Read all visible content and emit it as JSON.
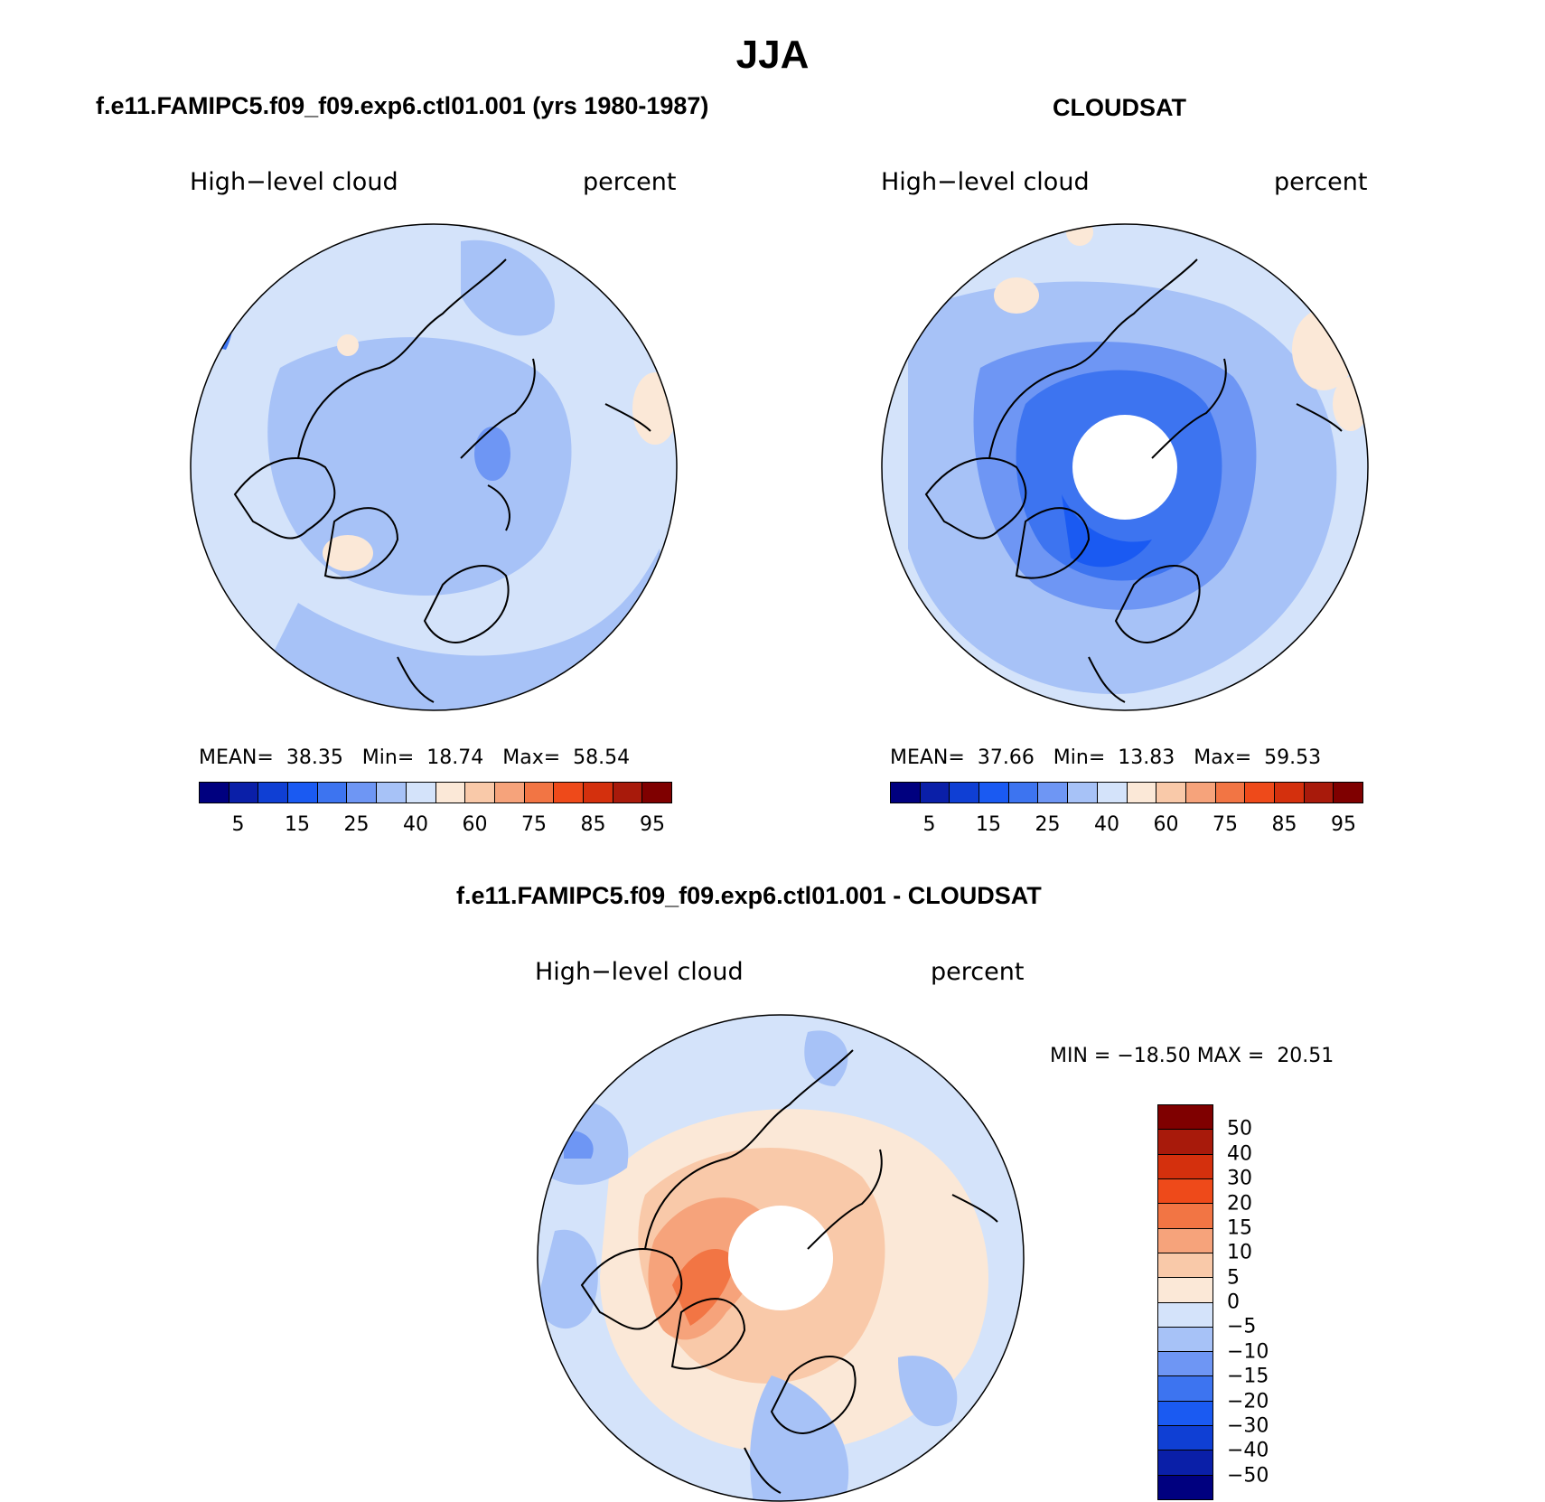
{
  "title": "JJA",
  "panels": [
    {
      "id": "model",
      "title": "f.e11.FAMIPC5.f09_f09.exp6.ctl01.001 (yrs 1980-1987)",
      "variable": "High−level cloud",
      "units": "percent",
      "stats": {
        "mean_label": "MEAN=",
        "mean": "38.35",
        "min_label": "Min=",
        "min": "18.74",
        "max_label": "Max=",
        "max": "58.54"
      }
    },
    {
      "id": "obs",
      "title": "CLOUDSAT",
      "variable": "High−level cloud",
      "units": "percent",
      "stats": {
        "mean_label": "MEAN=",
        "mean": "37.66",
        "min_label": "Min=",
        "min": "13.83",
        "max_label": "Max=",
        "max": "59.53"
      }
    },
    {
      "id": "diff",
      "title": "f.e11.FAMIPC5.f09_f09.exp6.ctl01.001 - CLOUDSAT",
      "variable": "High−level cloud",
      "units": "percent",
      "stats": {
        "min_label": "MIN =",
        "min": "−18.50",
        "max_label": "MAX =",
        "max": "20.51"
      }
    }
  ],
  "colorbar_abs": {
    "colors": [
      "#00007f",
      "#0a1fa8",
      "#0f3fd4",
      "#1a5af2",
      "#3d74f0",
      "#6e96f4",
      "#a7c2f7",
      "#d4e3fa",
      "#fbe8d7",
      "#f9c9a9",
      "#f6a37b",
      "#f27544",
      "#ee4a1a",
      "#d4300d",
      "#a81a0b",
      "#7f0000"
    ],
    "labels": [
      "5",
      "15",
      "25",
      "40",
      "60",
      "75",
      "85",
      "95"
    ]
  },
  "colorbar_diff": {
    "colors": [
      "#00007f",
      "#0a1fa8",
      "#0f3fd4",
      "#1a5af2",
      "#3d74f0",
      "#6e96f4",
      "#a7c2f7",
      "#d4e3fa",
      "#fbe8d7",
      "#f9c9a9",
      "#f6a37b",
      "#f27544",
      "#ee4a1a",
      "#d4300d",
      "#a81a0b",
      "#7f0000"
    ],
    "labels": [
      "50",
      "40",
      "30",
      "20",
      "15",
      "10",
      "5",
      "0",
      "−5",
      "−10",
      "−15",
      "−20",
      "−30",
      "−40",
      "−50"
    ]
  }
}
